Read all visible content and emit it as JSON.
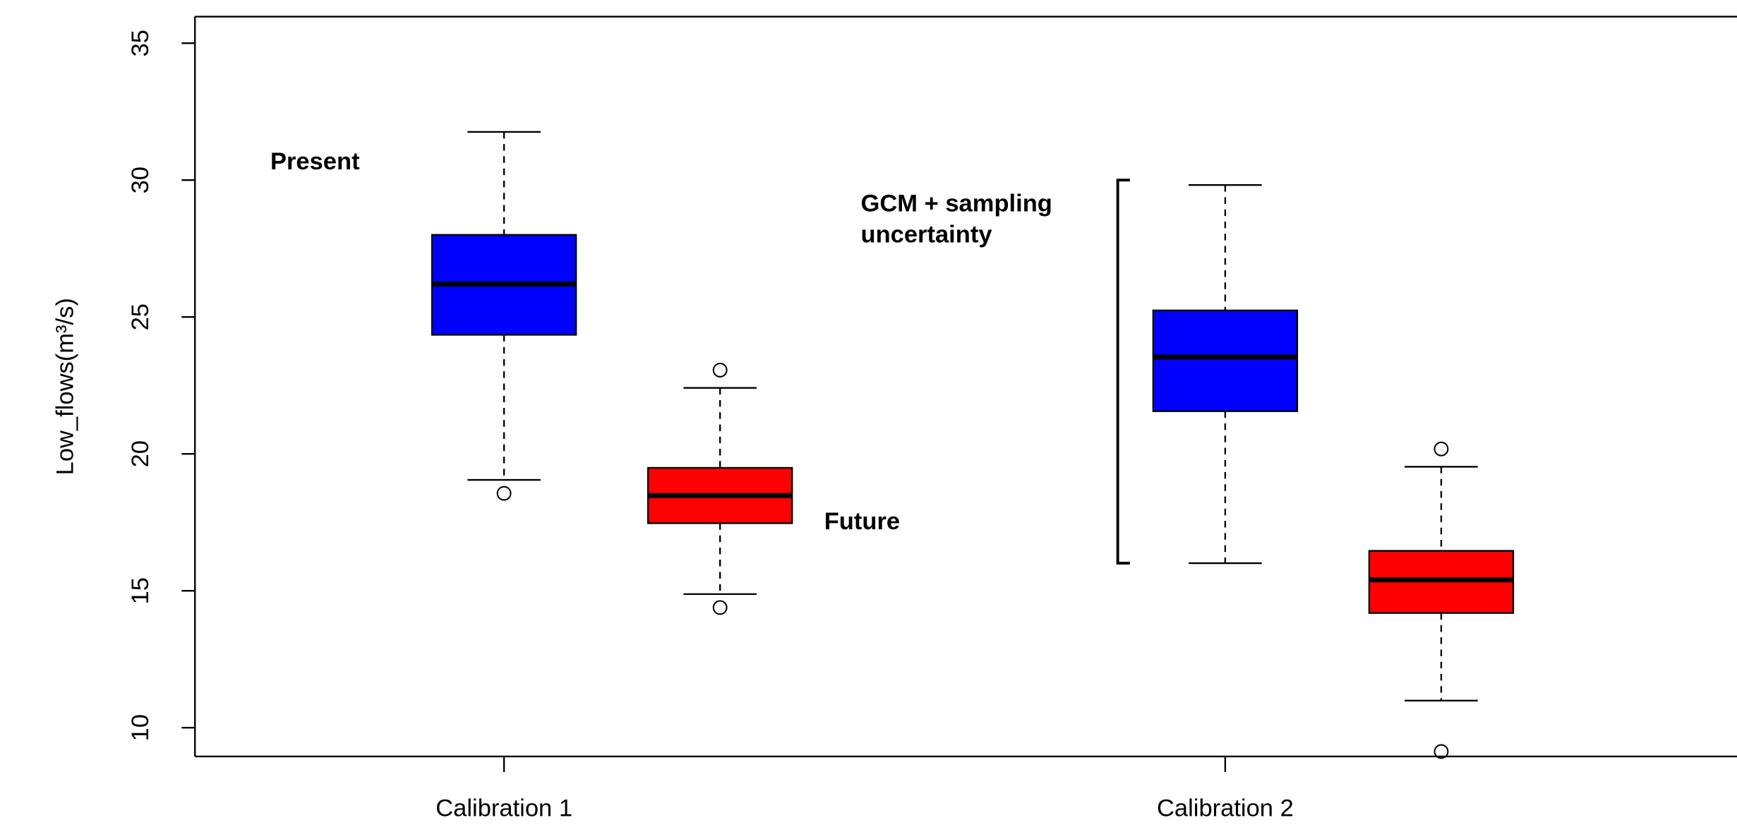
{
  "chart_data": {
    "type": "box",
    "y_label": "Low_flows(m³/s)",
    "categories": [
      "Calibration 1",
      "Calibration 2"
    ],
    "ylim": [
      8.95,
      35.97
    ],
    "yticks": [
      10,
      15,
      20,
      25,
      30,
      35
    ],
    "series": [
      {
        "name": "Present",
        "color": "#0000ff",
        "boxes": [
          {
            "whisker_low": 19.05,
            "q1": 24.35,
            "median": 26.2,
            "q3": 28.0,
            "whisker_high": 31.76,
            "outliers": [
              18.56
            ]
          },
          {
            "whisker_low": 16.01,
            "q1": 21.56,
            "median": 23.54,
            "q3": 25.24,
            "whisker_high": 29.82,
            "outliers": []
          }
        ]
      },
      {
        "name": "Future",
        "color": "#ff0000",
        "boxes": [
          {
            "whisker_low": 14.88,
            "q1": 17.47,
            "median": 18.48,
            "q3": 19.49,
            "whisker_high": 22.41,
            "outliers": [
              23.06,
              14.39
            ]
          },
          {
            "whisker_low": 10.99,
            "q1": 14.19,
            "median": 15.4,
            "q3": 16.46,
            "whisker_high": 19.53,
            "outliers": [
              20.18,
              9.13
            ]
          }
        ]
      }
    ],
    "annotation": {
      "lines": [
        "GCM + sampling",
        "uncertainty"
      ],
      "range": [
        16.01,
        30.0
      ]
    }
  }
}
